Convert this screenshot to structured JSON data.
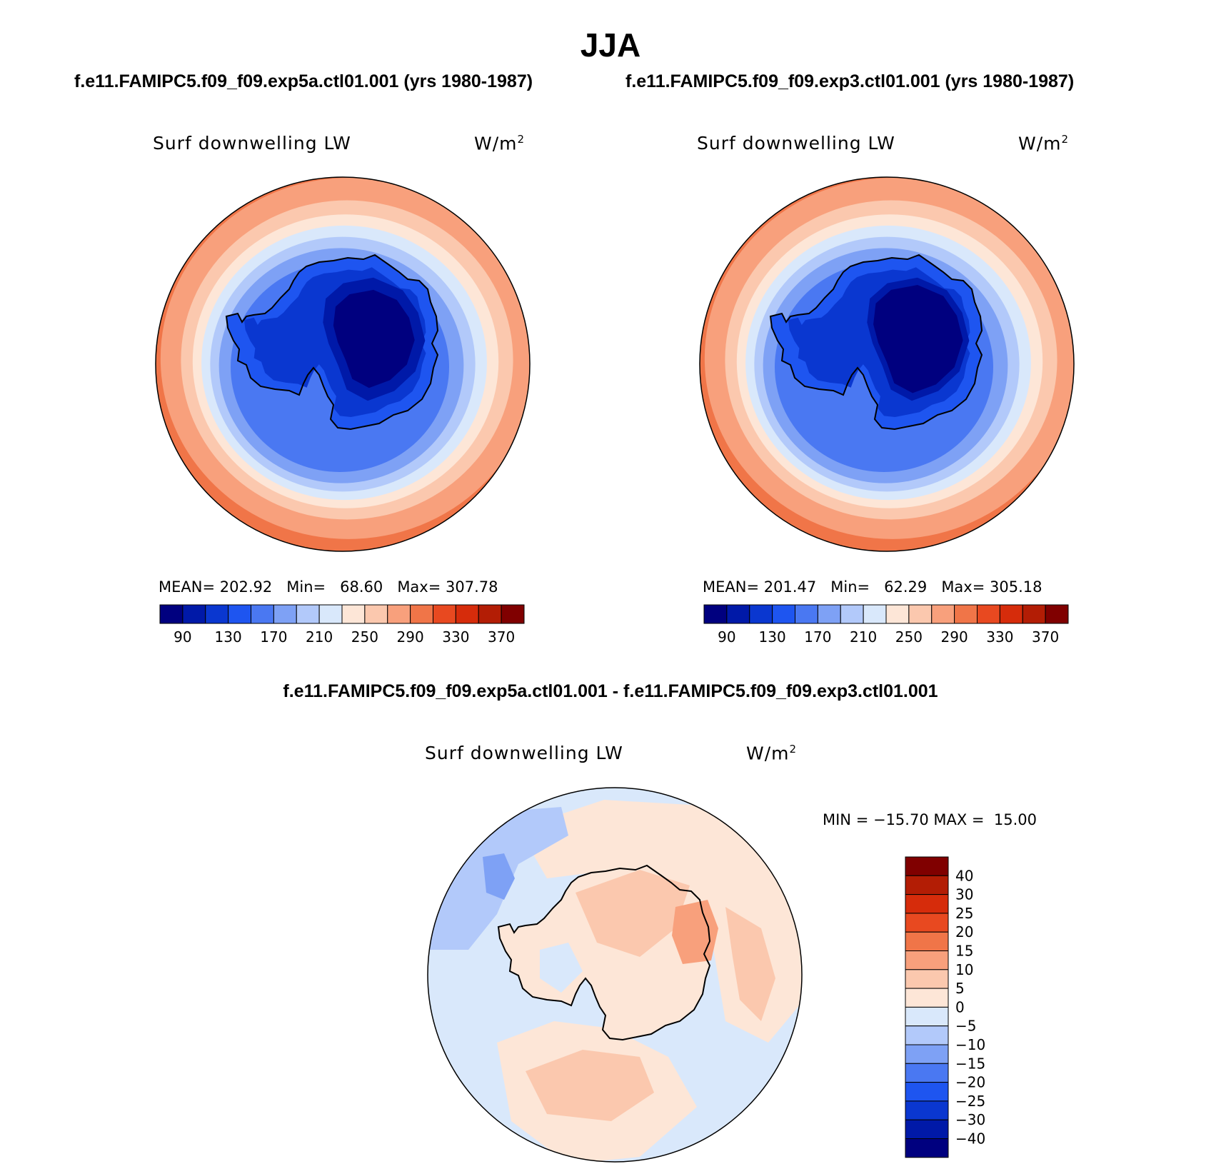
{
  "page": {
    "title": "JJA",
    "run_a_title": "f.e11.FAMIPC5.f09_f09.exp5a.ctl01.001 (yrs 1980-1987)",
    "run_b_title": "f.e11.FAMIPC5.f09_f09.exp3.ctl01.001 (yrs 1980-1987)",
    "diff_title": "f.e11.FAMIPC5.f09_f09.exp5a.ctl01.001 - f.e11.FAMIPC5.f09_f09.exp3.ctl01.001"
  },
  "chart_data": [
    {
      "type": "heatmap",
      "projection": "south-polar-stereographic",
      "variable": "Surf downwelling LW",
      "units": "W/m",
      "units_sup": "2",
      "stats": {
        "mean_label": "MEAN=",
        "mean": "202.92",
        "min_label": "Min=",
        "min": "68.60",
        "max_label": "Max=",
        "max": "307.78"
      },
      "levels": [
        90,
        110,
        130,
        150,
        170,
        190,
        210,
        230,
        250,
        270,
        290,
        310,
        330,
        350,
        370
      ],
      "tick_labels": [
        "90",
        "130",
        "170",
        "210",
        "250",
        "290",
        "330",
        "370"
      ],
      "colorbar_orientation": "horizontal"
    },
    {
      "type": "heatmap",
      "projection": "south-polar-stereographic",
      "variable": "Surf downwelling LW",
      "units": "W/m",
      "units_sup": "2",
      "stats": {
        "mean_label": "MEAN=",
        "mean": "201.47",
        "min_label": "Min=",
        "min": "62.29",
        "max_label": "Max=",
        "max": "305.18"
      },
      "levels": [
        90,
        110,
        130,
        150,
        170,
        190,
        210,
        230,
        250,
        270,
        290,
        310,
        330,
        350,
        370
      ],
      "tick_labels": [
        "90",
        "130",
        "170",
        "210",
        "250",
        "290",
        "330",
        "370"
      ],
      "colorbar_orientation": "horizontal"
    },
    {
      "type": "heatmap",
      "projection": "south-polar-stereographic",
      "variable": "Surf downwelling LW",
      "units": "W/m",
      "units_sup": "2",
      "stats_text": "MIN = −15.70 MAX =  15.00",
      "levels": [
        -40,
        -30,
        -25,
        -20,
        -15,
        -10,
        -5,
        0,
        5,
        10,
        15,
        20,
        25,
        30,
        40
      ],
      "tick_labels": [
        "40",
        "30",
        "25",
        "20",
        "15",
        "10",
        "5",
        "0",
        "−5",
        "−10",
        "−15",
        "−20",
        "−25",
        "−30",
        "−40"
      ],
      "colorbar_orientation": "vertical"
    }
  ],
  "colors": {
    "levels16": [
      "#00007f",
      "#0019a8",
      "#0a37d0",
      "#1e55f0",
      "#4a78f2",
      "#7ea1f5",
      "#b2c9fa",
      "#d9e8fb",
      "#fde6d7",
      "#fbc8ae",
      "#f8a07c",
      "#f07548",
      "#e84920",
      "#d62c0b",
      "#b31d05",
      "#800000"
    ],
    "land_outline": "#000000"
  }
}
